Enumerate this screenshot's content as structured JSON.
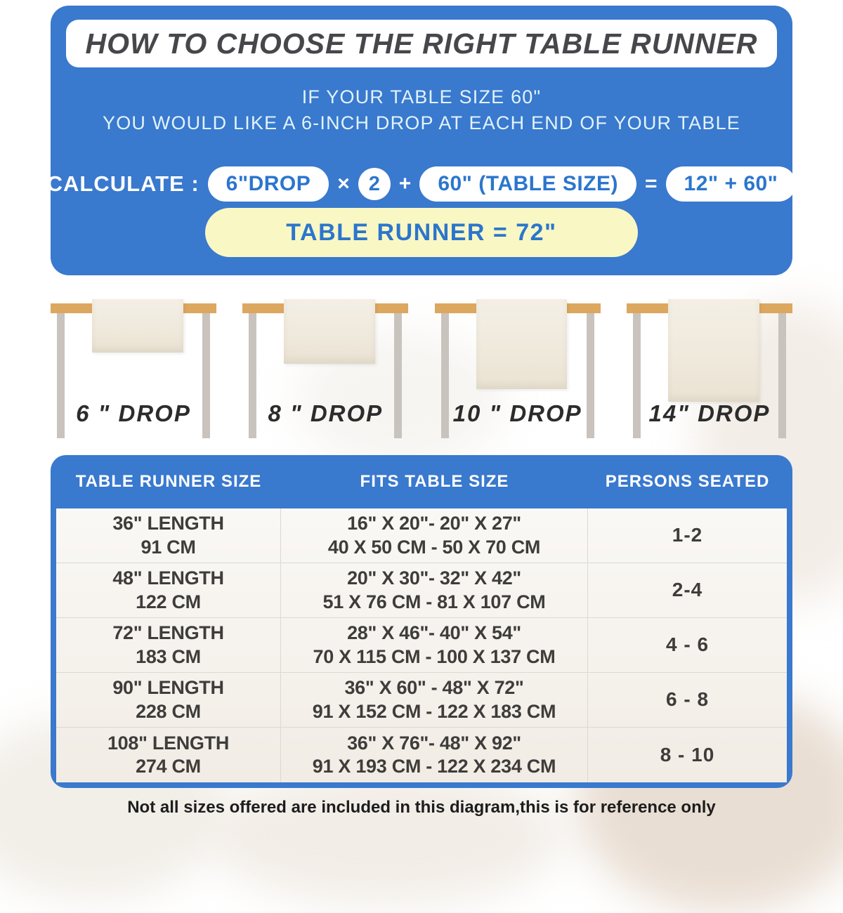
{
  "title": "HOW TO CHOOSE THE RIGHT TABLE RUNNER",
  "intro": {
    "line1": "IF YOUR TABLE SIZE 60\"",
    "line2": "YOU WOULD LIKE A 6-INCH DROP AT EACH END OF YOUR TABLE"
  },
  "calculation": {
    "label": "CALCULATE :",
    "drop_pill": "6\"DROP",
    "times": "×",
    "multiplier": "2",
    "plus": "+",
    "table_size_pill": "60\" (TABLE SIZE)",
    "equals": "=",
    "result_pill": "12\" + 60\"",
    "runner_result": "TABLE RUNNER = 72\""
  },
  "drops": [
    {
      "label": "6 \" DROP"
    },
    {
      "label": "8 \" DROP"
    },
    {
      "label": "10 \" DROP"
    },
    {
      "label": "14\" DROP"
    }
  ],
  "size_table": {
    "headers": [
      "TABLE RUNNER SIZE",
      "FITS TABLE SIZE",
      "PERSONS SEATED"
    ],
    "rows": [
      {
        "runner_in": "36\" LENGTH",
        "runner_cm": "91 CM",
        "fits_in": "16\" X 20\"- 20\" X 27\"",
        "fits_cm": "40 X 50 CM - 50 X 70 CM",
        "persons": "1-2"
      },
      {
        "runner_in": "48\" LENGTH",
        "runner_cm": "122 CM",
        "fits_in": "20\" X 30\"- 32\" X 42\"",
        "fits_cm": "51 X 76 CM - 81 X 107 CM",
        "persons": "2-4"
      },
      {
        "runner_in": "72\" LENGTH",
        "runner_cm": "183 CM",
        "fits_in": "28\" X 46\"- 40\" X 54\"",
        "fits_cm": "70 X 115 CM - 100 X 137 CM",
        "persons": "4 - 6"
      },
      {
        "runner_in": "90\" LENGTH",
        "runner_cm": "228 CM",
        "fits_in": "36\" X 60\" - 48\" X 72\"",
        "fits_cm": "91 X 152 CM - 122 X 183 CM",
        "persons": "6 - 8"
      },
      {
        "runner_in": "108\" LENGTH",
        "runner_cm": "274 CM",
        "fits_in": "36\" X 76\"- 48\" X 92\"",
        "fits_cm": "91 X 193 CM - 122 X 234 CM",
        "persons": "8 - 10"
      }
    ]
  },
  "footer_note": "Not all sizes offered are included in this diagram,this is for reference only",
  "colors": {
    "panel_blue": "#3979CE",
    "pill_text_blue": "#2B76CD",
    "result_yellow": "#F9F7C4",
    "tabletop_tan": "#DCA75F",
    "leg_gray": "#C9C3BD",
    "runner_cream": "#F0EADE"
  }
}
